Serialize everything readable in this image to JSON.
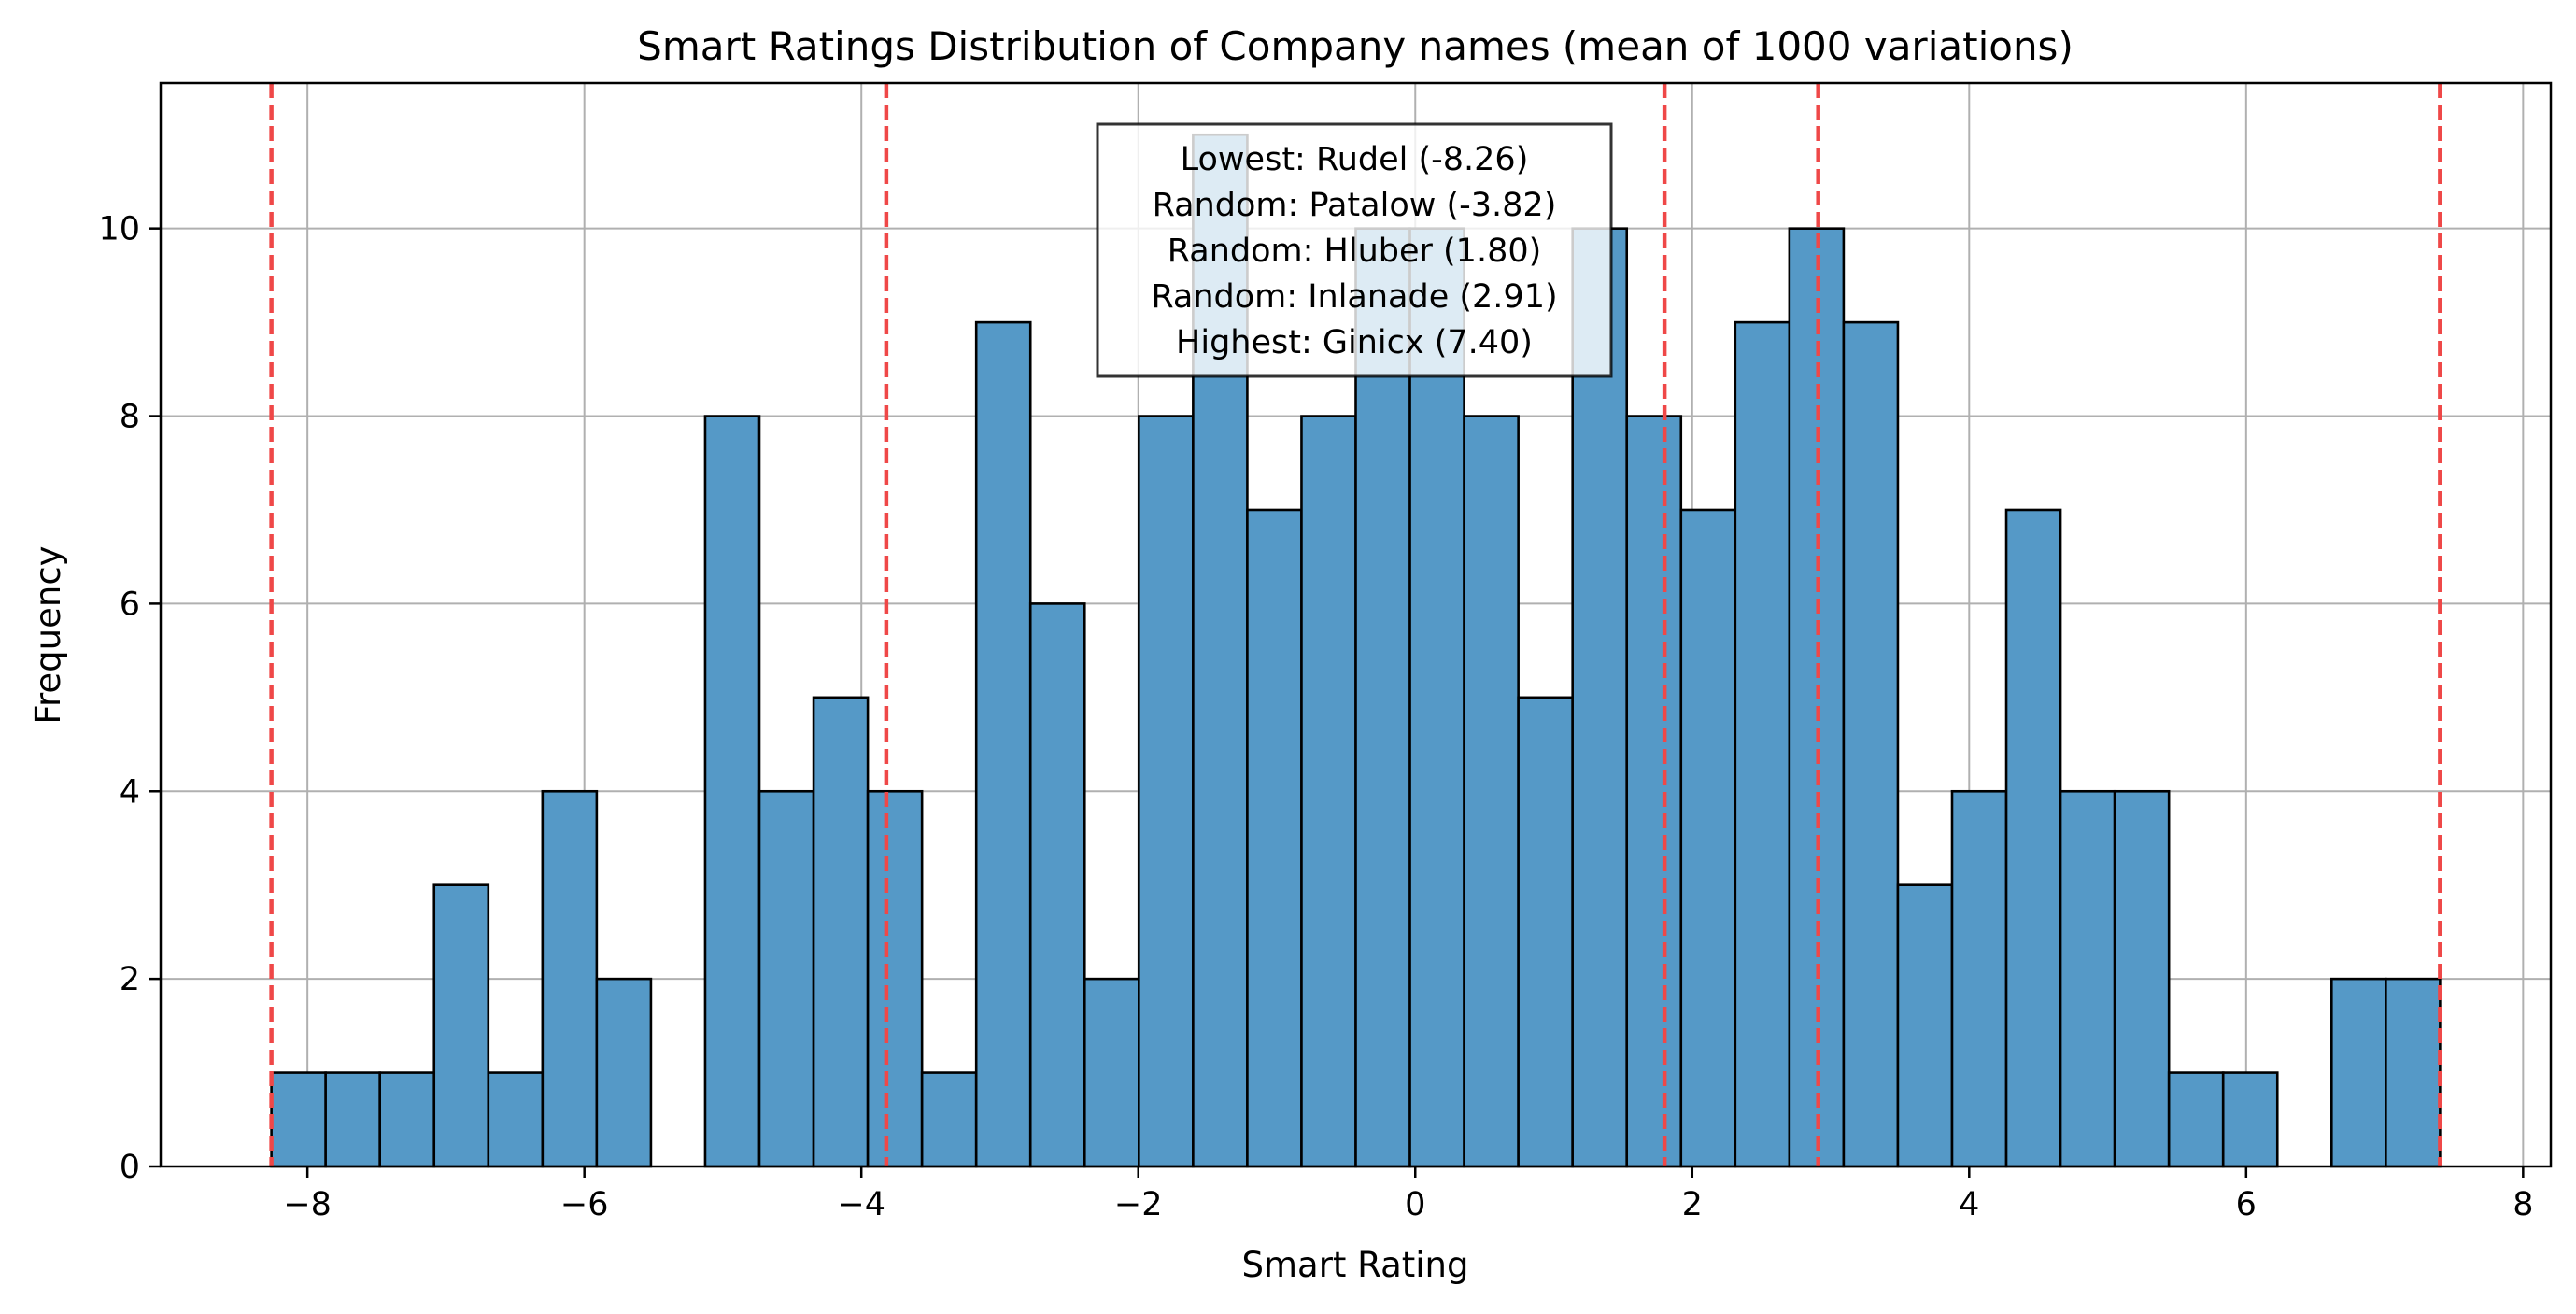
{
  "chart_data": {
    "type": "bar",
    "title": "Smart Ratings Distribution of Company names (mean of 1000 variations)",
    "xlabel": "Smart Rating",
    "ylabel": "Frequency",
    "xlim": [
      -9.06,
      8.2
    ],
    "ylim": [
      0,
      11.55
    ],
    "x_ticks": [
      -8,
      -6,
      -4,
      -2,
      0,
      2,
      4,
      6,
      8
    ],
    "x_tick_labels": [
      "−8",
      "−6",
      "−4",
      "−2",
      "0",
      "2",
      "4",
      "6",
      "8"
    ],
    "y_ticks": [
      0,
      2,
      4,
      6,
      8,
      10
    ],
    "y_tick_labels": [
      "0",
      "2",
      "4",
      "6",
      "8",
      "10"
    ],
    "grid": true,
    "bin_start": -8.26,
    "bin_end": 7.4,
    "values": [
      1,
      1,
      1,
      3,
      1,
      4,
      2,
      0,
      8,
      4,
      5,
      4,
      1,
      9,
      6,
      2,
      8,
      11,
      7,
      8,
      10,
      10,
      8,
      5,
      10,
      8,
      7,
      9,
      10,
      9,
      3,
      4,
      7,
      4,
      4,
      1,
      1,
      0,
      2,
      2
    ],
    "bar_color": "#5599c7",
    "bar_edge_color": "#000000",
    "reference_lines": [
      {
        "x": -8.26,
        "color": "#ef4848"
      },
      {
        "x": -3.82,
        "color": "#ef4848"
      },
      {
        "x": 1.8,
        "color": "#ef4848"
      },
      {
        "x": 2.91,
        "color": "#ef4848"
      },
      {
        "x": 7.4,
        "color": "#ef4848"
      }
    ],
    "annotation": {
      "lines": [
        "Lowest: Rudel (-8.26)",
        "Random: Patalow (-3.82)",
        "Random: Hluber (1.80)",
        "Random: Inlanade (2.91)",
        "Highest: Ginicx (7.40)"
      ],
      "placement": "top-center"
    }
  }
}
